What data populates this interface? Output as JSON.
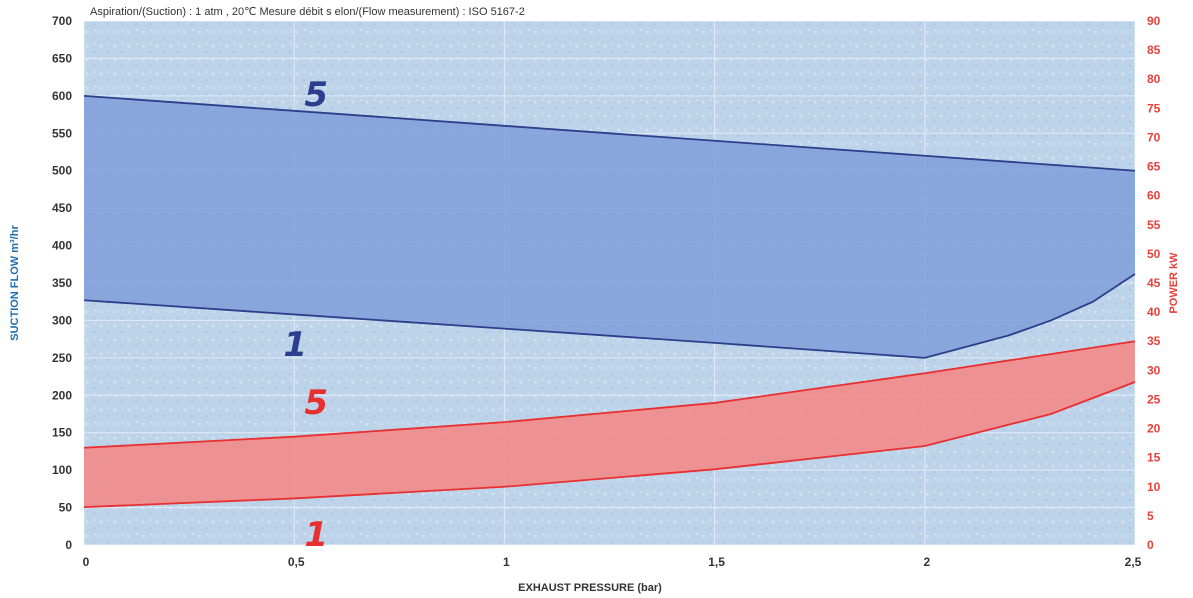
{
  "chart_data": {
    "type": "area",
    "note": "Aspiration/(Suction) : 1 atm , 20℃  Mesure débit s elon/(Flow measurement) : ISO 5167-2",
    "xlabel": "EXHAUST PRESSURE (bar)",
    "ylabel_left": "SUCTION FLOW m³/hr",
    "ylabel_right": "POWER kW",
    "xlim": [
      0,
      2.5
    ],
    "ylim_left": [
      0,
      700
    ],
    "ylim_right": [
      0,
      90
    ],
    "x_ticks": [
      "0",
      "0,5",
      "1",
      "1,5",
      "2",
      "2,5"
    ],
    "y_left_ticks": [
      "0",
      "50",
      "100",
      "150",
      "200",
      "250",
      "300",
      "350",
      "400",
      "450",
      "500",
      "550",
      "600",
      "650",
      "700"
    ],
    "y_right_ticks": [
      "0",
      "5",
      "10",
      "15",
      "20",
      "25",
      "30",
      "35",
      "40",
      "45",
      "50",
      "55",
      "60",
      "65",
      "70",
      "75",
      "80",
      "85",
      "90"
    ],
    "grid": true,
    "colors": {
      "flow": "#2c3e8c",
      "flow_fill": "#7f9ed8",
      "power": "#e83030",
      "power_fill": "#f28a8a",
      "background": "#bcd3ea"
    },
    "series": [
      {
        "label": "5",
        "axis": "left",
        "color": "#2c3e8c",
        "x": [
          0,
          0.5,
          1,
          1.5,
          2,
          2.5
        ],
        "y": [
          600,
          580,
          560,
          540,
          520,
          500
        ]
      },
      {
        "label": "1",
        "axis": "left",
        "color": "#2c3e8c",
        "x": [
          0,
          0.5,
          1,
          1.5,
          2,
          2.2,
          2.3,
          2.4,
          2.5
        ],
        "y": [
          327,
          308,
          289,
          270,
          250,
          280,
          300,
          325,
          362
        ]
      },
      {
        "label": "5",
        "axis": "right",
        "color": "#e83030",
        "x": [
          0,
          0.5,
          1,
          1.5,
          2,
          2.5
        ],
        "y": [
          16.7,
          18.6,
          21.1,
          24.4,
          29.5,
          35
        ]
      },
      {
        "label": "1",
        "axis": "right",
        "color": "#e83030",
        "x": [
          0,
          0.5,
          1,
          1.5,
          2,
          2.3,
          2.5
        ],
        "y": [
          6.5,
          8,
          10,
          13,
          17,
          22.5,
          28
        ]
      }
    ]
  }
}
